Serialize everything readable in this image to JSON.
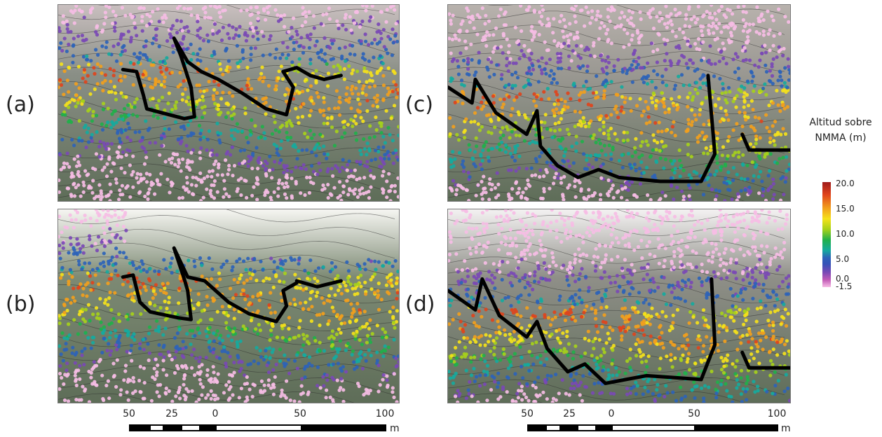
{
  "panels": [
    {
      "id": "a",
      "label": "(a)",
      "style": "grey"
    },
    {
      "id": "b",
      "label": "(b)",
      "style": "white"
    },
    {
      "id": "c",
      "label": "(c)",
      "style": "grey"
    },
    {
      "id": "d",
      "label": "(d)",
      "style": "white"
    }
  ],
  "scale_bar": {
    "ticks": [
      "50",
      "25",
      "0",
      "50",
      "100"
    ],
    "unit": "m"
  },
  "legend": {
    "title_line1": "Altitud sobre",
    "title_line2": "NMMA (m)",
    "ticks": [
      "20.0",
      "15.0",
      "10.0",
      "5.0",
      "0.0",
      "-1.5"
    ],
    "range": [
      -1.5,
      20.0
    ],
    "colors": [
      "#9e1a1a",
      "#e0441c",
      "#f2a01c",
      "#f5e21a",
      "#a6d11a",
      "#21b04a",
      "#15aa9e",
      "#2d63b8",
      "#7a49b5",
      "#f6bde5"
    ]
  }
}
